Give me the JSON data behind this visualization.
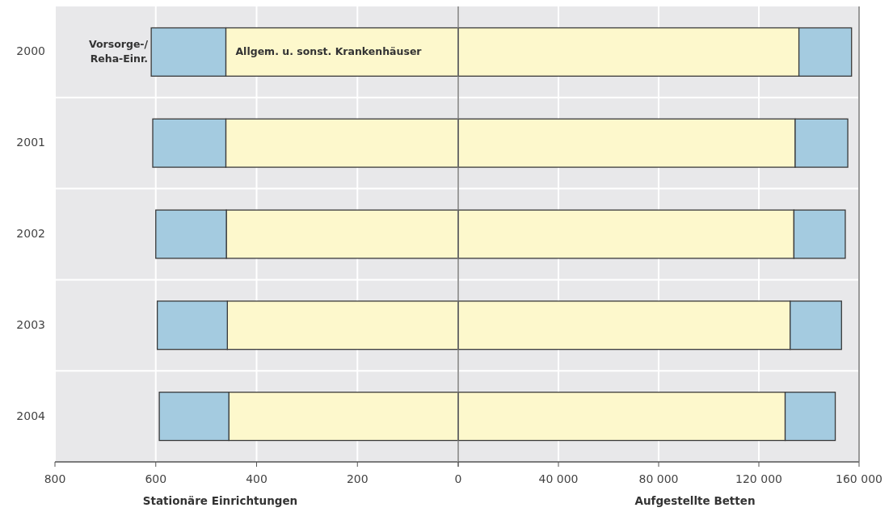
{
  "chart_data": [
    {
      "type": "bar",
      "orientation": "horizontal",
      "stacked": true,
      "categories": [
        "2000",
        "2001",
        "2002",
        "2003",
        "2004"
      ],
      "xlim": [
        800,
        0
      ],
      "xticks": [
        800,
        600,
        400,
        200,
        0
      ],
      "xlabel": "Stationäre Einrichtungen",
      "grid": true,
      "series": [
        {
          "name": "Allgem. u. sonst. Krankenhäuser",
          "color": "#fdf8cc",
          "values": [
            461,
            461,
            460,
            458,
            455
          ]
        },
        {
          "name": "Vorsorge-/\nReha-Einr.",
          "color": "#a4cbe0",
          "values": [
            148,
            145,
            140,
            139,
            138
          ]
        }
      ]
    },
    {
      "type": "bar",
      "orientation": "horizontal",
      "stacked": true,
      "categories": [
        "2000",
        "2001",
        "2002",
        "2003",
        "2004"
      ],
      "tick_labels": "x",
      "xlim": [
        0,
        160000
      ],
      "xticks": [
        {
          "value": 0,
          "label": null
        },
        {
          "value": 40000,
          "label": "40 000"
        },
        {
          "value": 80000,
          "label": "80 000"
        },
        {
          "value": 120000,
          "label": "120 000"
        },
        {
          "value": 160000,
          "label": "160 000"
        }
      ],
      "xlabel": "Aufgestellte Betten",
      "grid": true,
      "series": [
        {
          "color": "#fdf8cc",
          "values": [
            136000,
            134500,
            134000,
            132500,
            130500
          ]
        },
        {
          "color": "#a4cbe0",
          "values": [
            21000,
            21000,
            20500,
            20500,
            20000
          ]
        }
      ]
    }
  ]
}
